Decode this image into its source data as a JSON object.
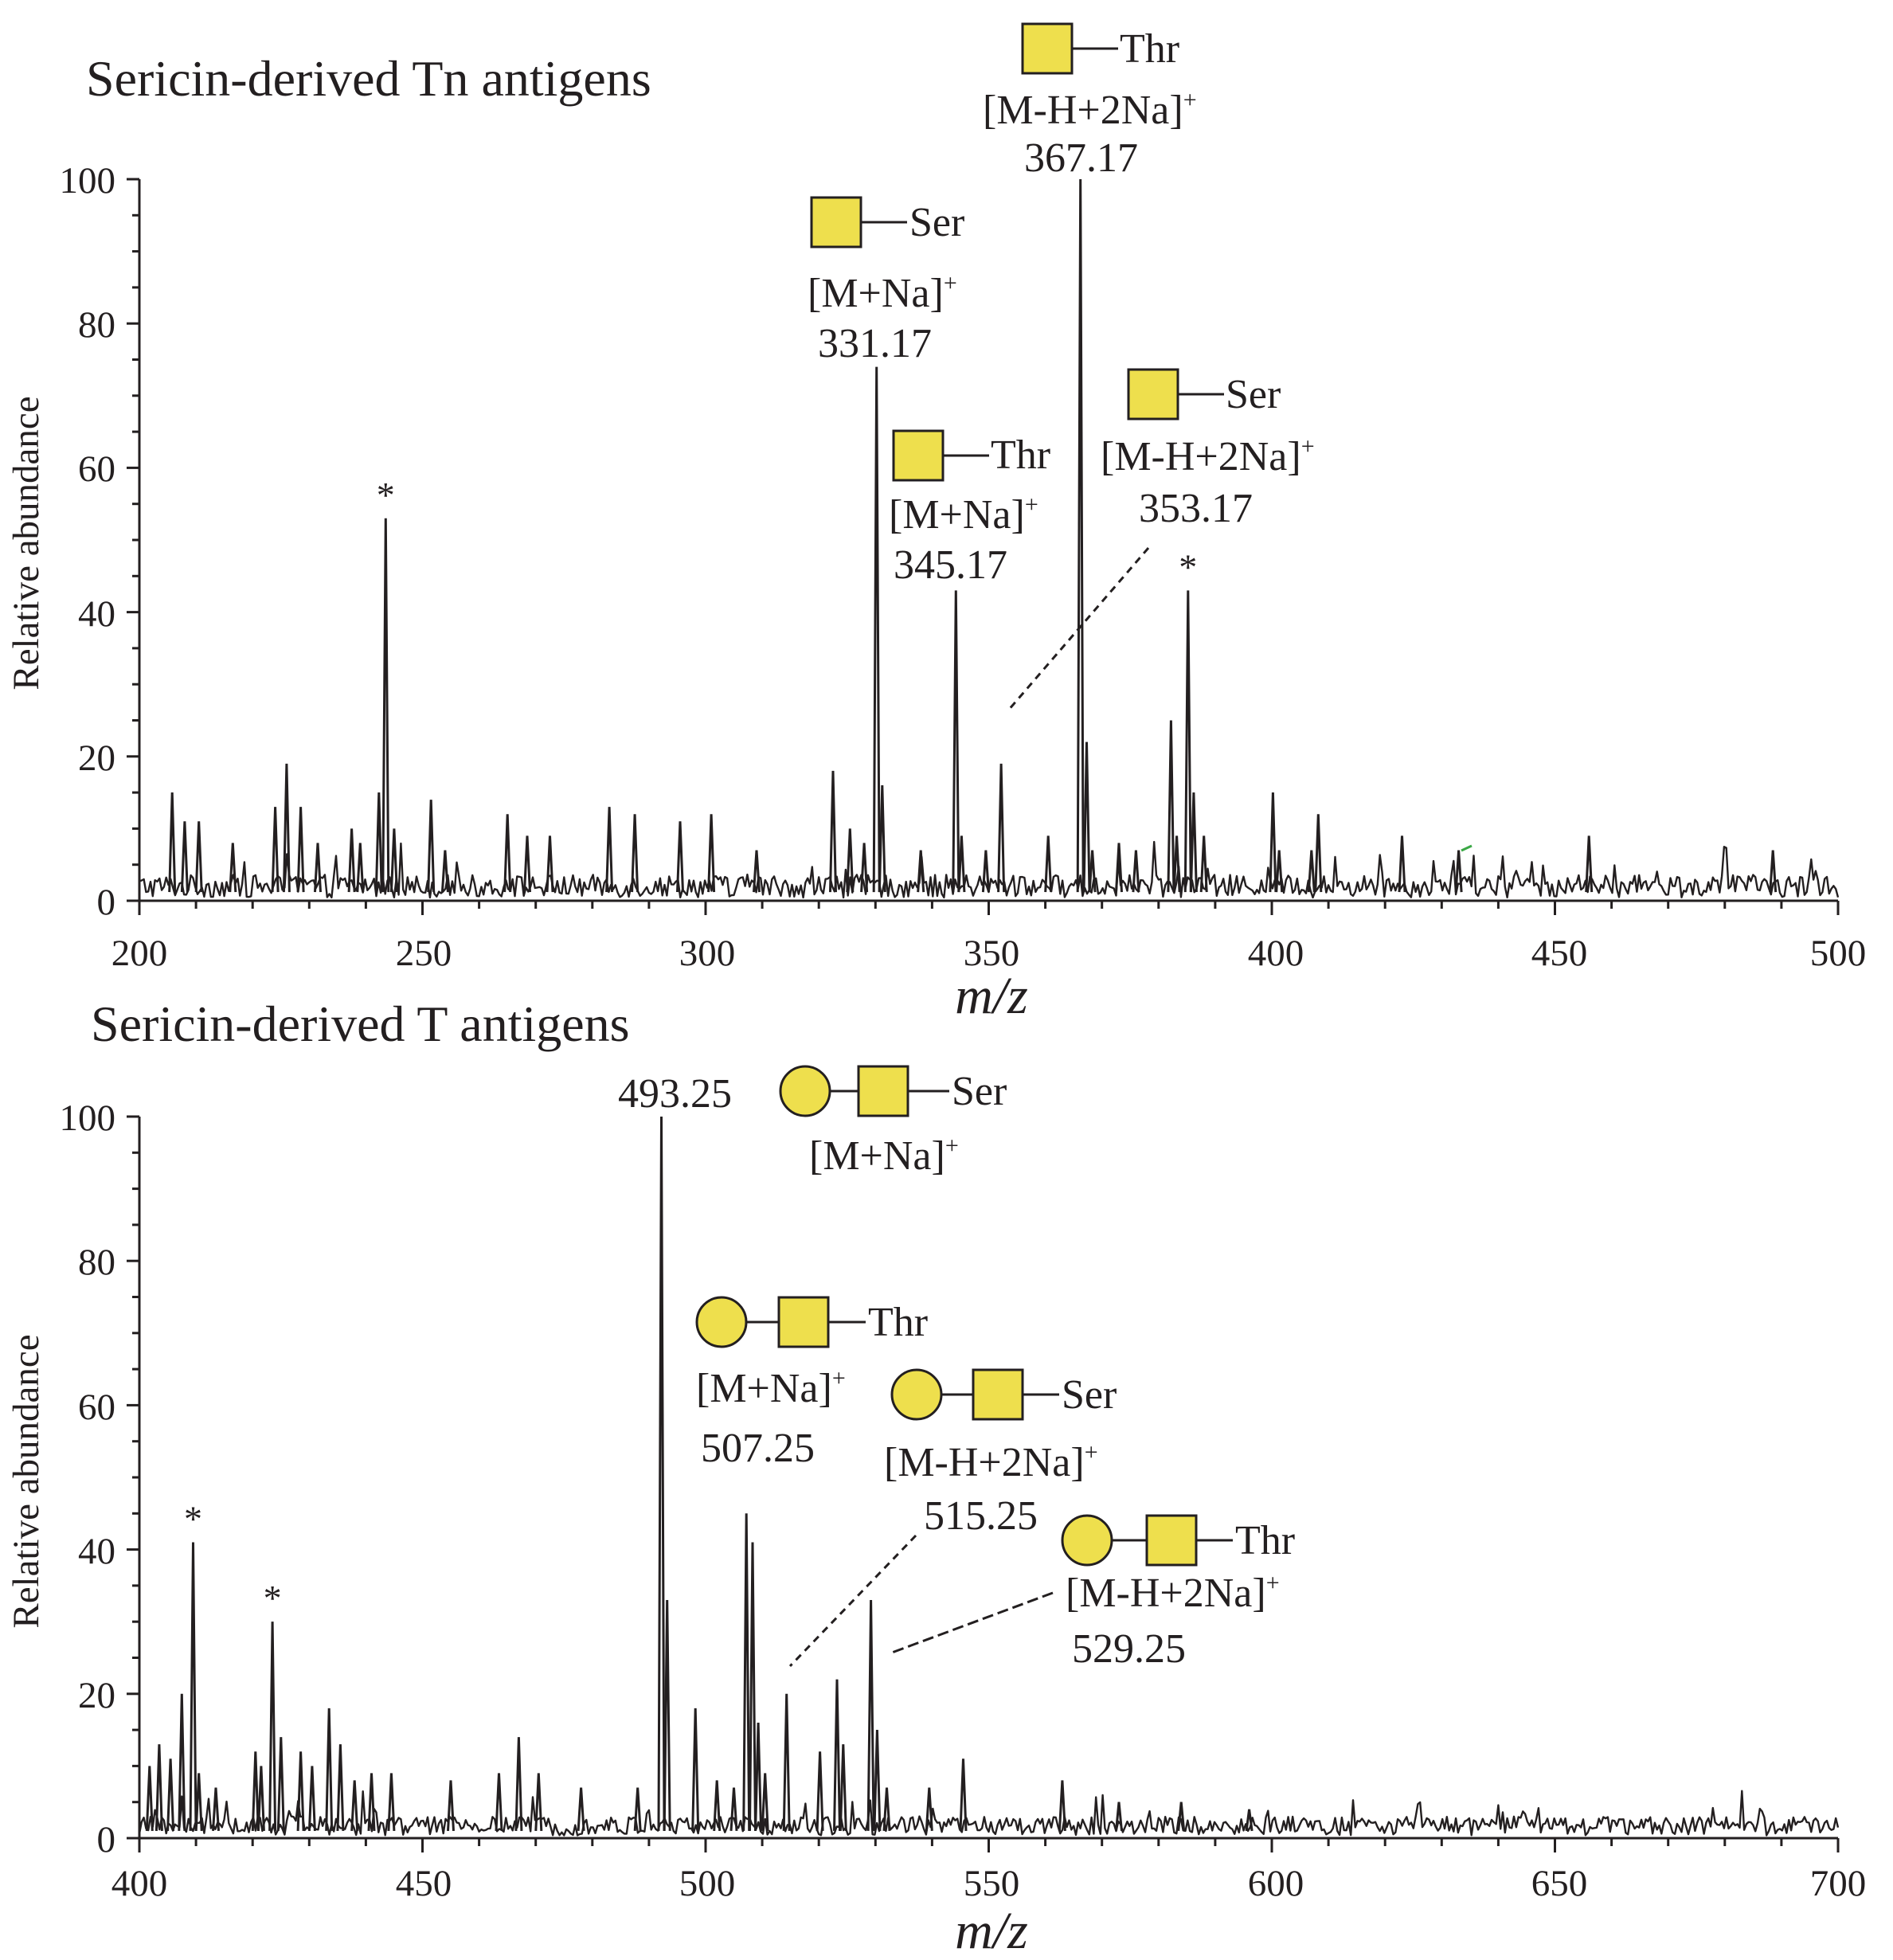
{
  "chart_data": [
    {
      "type": "line",
      "title": "Sericin-derived Tn antigens",
      "xlabel": "m/z",
      "ylabel": "Relative abundance",
      "xlim": [
        200,
        500
      ],
      "ylim": [
        0,
        100
      ],
      "x_ticks": [
        "200",
        "250",
        "300",
        "350",
        "400",
        "450",
        "500"
      ],
      "y_ticks": [
        "0",
        "20",
        "40",
        "60",
        "80",
        "100"
      ],
      "noise_level": 3,
      "peaks": [
        {
          "x": 205.8,
          "y": 15
        },
        {
          "x": 208,
          "y": 11
        },
        {
          "x": 210.5,
          "y": 11
        },
        {
          "x": 216.5,
          "y": 8
        },
        {
          "x": 224,
          "y": 13
        },
        {
          "x": 226,
          "y": 19
        },
        {
          "x": 228.5,
          "y": 13
        },
        {
          "x": 231.5,
          "y": 8
        },
        {
          "x": 237.5,
          "y": 10
        },
        {
          "x": 239,
          "y": 8
        },
        {
          "x": 242.3,
          "y": 15
        },
        {
          "x": 243.5,
          "y": 53
        },
        {
          "x": 245,
          "y": 10
        },
        {
          "x": 251.5,
          "y": 14
        },
        {
          "x": 254,
          "y": 7
        },
        {
          "x": 265,
          "y": 12
        },
        {
          "x": 268.5,
          "y": 9
        },
        {
          "x": 272.5,
          "y": 9
        },
        {
          "x": 283,
          "y": 13
        },
        {
          "x": 287.5,
          "y": 12
        },
        {
          "x": 295.5,
          "y": 11
        },
        {
          "x": 301,
          "y": 12
        },
        {
          "x": 309,
          "y": 7
        },
        {
          "x": 322.5,
          "y": 18
        },
        {
          "x": 325.5,
          "y": 10
        },
        {
          "x": 328,
          "y": 8
        },
        {
          "x": 330.2,
          "y": 74
        },
        {
          "x": 331.2,
          "y": 16
        },
        {
          "x": 338,
          "y": 7
        },
        {
          "x": 344.2,
          "y": 43
        },
        {
          "x": 345.2,
          "y": 9
        },
        {
          "x": 349.5,
          "y": 7
        },
        {
          "x": 352.2,
          "y": 19
        },
        {
          "x": 360.5,
          "y": 9
        },
        {
          "x": 366.2,
          "y": 100
        },
        {
          "x": 367.3,
          "y": 22
        },
        {
          "x": 368.3,
          "y": 7
        },
        {
          "x": 373,
          "y": 8
        },
        {
          "x": 376,
          "y": 7
        },
        {
          "x": 382.2,
          "y": 25
        },
        {
          "x": 383.2,
          "y": 9
        },
        {
          "x": 385.2,
          "y": 43
        },
        {
          "x": 386.2,
          "y": 15
        },
        {
          "x": 388,
          "y": 9
        },
        {
          "x": 400.2,
          "y": 15
        },
        {
          "x": 401.3,
          "y": 7
        },
        {
          "x": 407,
          "y": 7
        },
        {
          "x": 408.2,
          "y": 12
        },
        {
          "x": 423,
          "y": 9
        },
        {
          "x": 433,
          "y": 7
        },
        {
          "x": 456,
          "y": 9
        },
        {
          "x": 488.5,
          "y": 7
        }
      ],
      "annotations": [
        {
          "mz": "367.17",
          "ion": "[M-H+2Na]",
          "charge": "+",
          "aa": "Thr",
          "glycan": "Tn"
        },
        {
          "mz": "331.17",
          "ion": "[M+Na]",
          "charge": "+",
          "aa": "Ser",
          "glycan": "Tn"
        },
        {
          "mz": "345.17",
          "ion": "[M+Na]",
          "charge": "+",
          "aa": "Thr",
          "glycan": "Tn"
        },
        {
          "mz": "353.17",
          "ion": "[M-H+2Na]",
          "charge": "+",
          "aa": "Ser",
          "glycan": "Tn"
        }
      ],
      "star_marks": [
        {
          "x": 243.5,
          "y": 53,
          "label": "*"
        },
        {
          "x": 385.2,
          "y": 43,
          "label": "*"
        }
      ]
    },
    {
      "type": "line",
      "title": "Sericin-derived T antigens",
      "xlabel": "m/z",
      "ylabel": "Relative abundance",
      "xlim": [
        400,
        700
      ],
      "ylim": [
        0,
        100
      ],
      "x_ticks": [
        "400",
        "450",
        "500",
        "550",
        "600",
        "650",
        "700"
      ],
      "y_ticks": [
        "0",
        "20",
        "40",
        "60",
        "80",
        "100"
      ],
      "noise_level": 2.5,
      "peaks": [
        {
          "x": 401.8,
          "y": 10
        },
        {
          "x": 403.5,
          "y": 13
        },
        {
          "x": 405.5,
          "y": 11
        },
        {
          "x": 407.5,
          "y": 20
        },
        {
          "x": 409.5,
          "y": 41
        },
        {
          "x": 410.5,
          "y": 9
        },
        {
          "x": 413.5,
          "y": 7
        },
        {
          "x": 420.5,
          "y": 12
        },
        {
          "x": 421.5,
          "y": 10
        },
        {
          "x": 423.5,
          "y": 30
        },
        {
          "x": 425,
          "y": 14
        },
        {
          "x": 428.5,
          "y": 12
        },
        {
          "x": 430.5,
          "y": 10
        },
        {
          "x": 433.5,
          "y": 18
        },
        {
          "x": 435.5,
          "y": 13
        },
        {
          "x": 438,
          "y": 8
        },
        {
          "x": 441,
          "y": 9
        },
        {
          "x": 444.5,
          "y": 9
        },
        {
          "x": 455,
          "y": 8
        },
        {
          "x": 463.5,
          "y": 9
        },
        {
          "x": 467,
          "y": 14
        },
        {
          "x": 470.5,
          "y": 9
        },
        {
          "x": 478,
          "y": 7
        },
        {
          "x": 488,
          "y": 7
        },
        {
          "x": 492.2,
          "y": 100
        },
        {
          "x": 493.2,
          "y": 33
        },
        {
          "x": 498.2,
          "y": 18
        },
        {
          "x": 502,
          "y": 8
        },
        {
          "x": 505,
          "y": 7
        },
        {
          "x": 507.2,
          "y": 45
        },
        {
          "x": 508.3,
          "y": 41
        },
        {
          "x": 509.3,
          "y": 16
        },
        {
          "x": 510.5,
          "y": 9
        },
        {
          "x": 514.3,
          "y": 20
        },
        {
          "x": 520.2,
          "y": 12
        },
        {
          "x": 523.2,
          "y": 22
        },
        {
          "x": 524.3,
          "y": 13
        },
        {
          "x": 529.2,
          "y": 33
        },
        {
          "x": 530.3,
          "y": 15
        },
        {
          "x": 532,
          "y": 7
        },
        {
          "x": 539.5,
          "y": 7
        },
        {
          "x": 545.5,
          "y": 11
        },
        {
          "x": 563,
          "y": 8
        },
        {
          "x": 573,
          "y": 5
        },
        {
          "x": 584,
          "y": 5
        },
        {
          "x": 596,
          "y": 4
        }
      ],
      "annotations": [
        {
          "mz": "493.25",
          "ion": "[M+Na]",
          "charge": "+",
          "aa": "Ser",
          "glycan": "T"
        },
        {
          "mz": "507.25",
          "ion": "[M+Na]",
          "charge": "+",
          "aa": "Thr",
          "glycan": "T"
        },
        {
          "mz": "515.25",
          "ion": "[M-H+2Na]",
          "charge": "+",
          "aa": "Ser",
          "glycan": "T"
        },
        {
          "mz": "529.25",
          "ion": "[M-H+2Na]",
          "charge": "+",
          "aa": "Thr",
          "glycan": "T"
        }
      ],
      "star_marks": [
        {
          "x": 409.5,
          "y": 41,
          "label": "*"
        },
        {
          "x": 423.5,
          "y": 30,
          "label": "*"
        }
      ]
    }
  ],
  "colors": {
    "trace": "#231f20",
    "axis": "#231f20",
    "glycan_fill": "#eedf4d",
    "glycan_stroke": "#231f20",
    "stray_mark": "#3aa845"
  }
}
